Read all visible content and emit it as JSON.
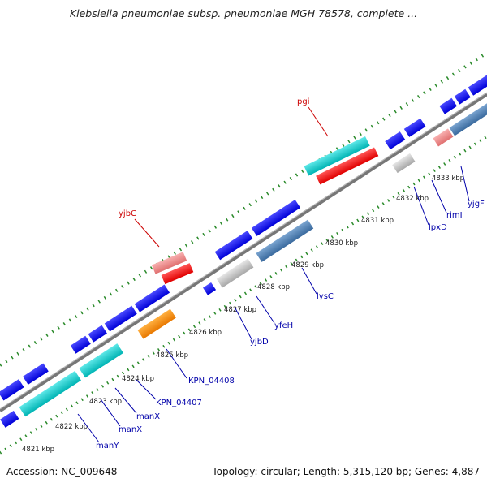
{
  "title": "Klebsiella pneumoniae subsp. pneumoniae MGH 78578, complete ...",
  "footer": {
    "accession": "Accession: NC_009648",
    "summary": "Topology: circular; Length: 5,315,120 bp; Genes: 4,887"
  },
  "ticks": [
    {
      "label": "4821 kbp"
    },
    {
      "label": "4822 kbp"
    },
    {
      "label": "4823 kbp"
    },
    {
      "label": "4824 kbp"
    },
    {
      "label": "4825 kbp"
    },
    {
      "label": "4826 kbp"
    },
    {
      "label": "4827 kbp"
    },
    {
      "label": "4828 kbp"
    },
    {
      "label": "4829 kbp"
    },
    {
      "label": "4830 kbp"
    },
    {
      "label": "4831 kbp"
    },
    {
      "label": "4832 kbp"
    },
    {
      "label": "4833 kbp"
    }
  ],
  "gene_labels": [
    {
      "name": "manY",
      "color": "#0000aa"
    },
    {
      "name": "manX",
      "color": "#0000aa"
    },
    {
      "name": "KPN_04407",
      "color": "#0000aa"
    },
    {
      "name": "KPN_04408",
      "color": "#0000aa"
    },
    {
      "name": "yjbD",
      "color": "#0000aa"
    },
    {
      "name": "yfeH",
      "color": "#0000aa"
    },
    {
      "name": "lysC",
      "color": "#0000aa"
    },
    {
      "name": "lpxD",
      "color": "#0000aa"
    },
    {
      "name": "rimI",
      "color": "#0000aa"
    },
    {
      "name": "yjgF",
      "color": "#0000aa"
    },
    {
      "name": "yjbC",
      "color": "#cc0000"
    },
    {
      "name": "pgi",
      "color": "#cc0000"
    }
  ],
  "colors": {
    "backbone": "#888888",
    "cds": "#0000ee",
    "cds_highlight": "#00c8c8",
    "rna": "#ff1111",
    "rna_light": "#f08a8a",
    "pseudo": "#c8c8c8",
    "steel": "#4a7ab0",
    "orange": "#ff8800",
    "tick": "#2a8a2a"
  }
}
